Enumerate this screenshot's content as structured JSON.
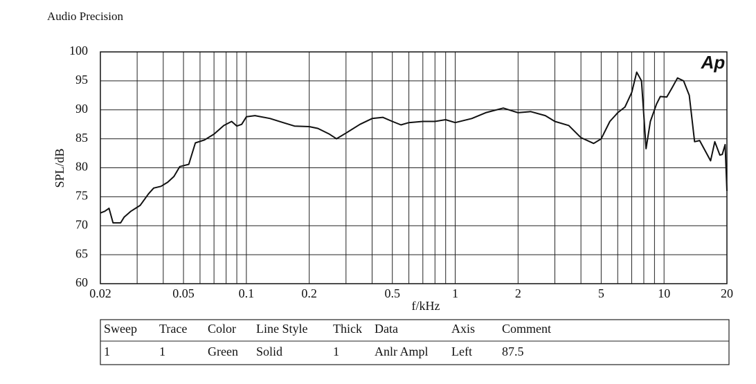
{
  "header": {
    "title": "Audio Precision",
    "logo": "Ap"
  },
  "chart_data": {
    "type": "line",
    "ylabel": "SPL/dB",
    "xlabel": "f/kHz",
    "xscale": "log",
    "grid": true,
    "color": "#111111",
    "xlim": [
      0.02,
      20
    ],
    "ylim": [
      60,
      100
    ],
    "xticks": [
      0.02,
      0.05,
      0.1,
      0.2,
      0.5,
      1,
      2,
      5,
      10,
      20
    ],
    "xgrid": [
      0.03,
      0.04,
      0.06,
      0.07,
      0.08,
      0.09,
      0.3,
      0.4,
      0.6,
      0.7,
      0.8,
      0.9,
      3,
      4,
      6,
      7,
      8,
      9
    ],
    "yticks": [
      60,
      65,
      70,
      75,
      80,
      85,
      90,
      95,
      100
    ],
    "x": [
      0.02,
      0.021,
      0.022,
      0.023,
      0.025,
      0.026,
      0.028,
      0.031,
      0.034,
      0.036,
      0.039,
      0.042,
      0.045,
      0.048,
      0.053,
      0.057,
      0.063,
      0.07,
      0.078,
      0.085,
      0.09,
      0.095,
      0.1,
      0.11,
      0.13,
      0.15,
      0.17,
      0.2,
      0.22,
      0.25,
      0.27,
      0.3,
      0.35,
      0.4,
      0.45,
      0.5,
      0.55,
      0.6,
      0.7,
      0.8,
      0.9,
      1.0,
      1.2,
      1.4,
      1.7,
      2.0,
      2.3,
      2.7,
      3.0,
      3.5,
      4.0,
      4.6,
      5.0,
      5.5,
      6.0,
      6.5,
      7.0,
      7.4,
      7.8,
      8.0,
      8.2,
      8.6,
      9.2,
      9.6,
      10.3,
      11,
      11.6,
      12.4,
      13.2,
      14,
      14.8,
      15.7,
      16.7,
      17.5,
      18.5,
      19.0,
      19.6,
      20
    ],
    "values": [
      72.2,
      72.5,
      73,
      70.5,
      70.5,
      71.5,
      72.5,
      73.5,
      75.5,
      76.5,
      76.8,
      77.5,
      78.5,
      80.2,
      80.6,
      84.3,
      84.8,
      85.8,
      87.3,
      88,
      87.2,
      87.5,
      88.8,
      89,
      88.5,
      87.8,
      87.2,
      87.1,
      86.8,
      85.8,
      85,
      86,
      87.5,
      88.5,
      88.7,
      88,
      87.4,
      87.8,
      88,
      88,
      88.3,
      87.8,
      88.5,
      89.5,
      90.3,
      89.5,
      89.7,
      89,
      88,
      87.3,
      85.2,
      84.2,
      85,
      88,
      89.5,
      90.5,
      93,
      96.5,
      95,
      89,
      83.3,
      88,
      91,
      92.3,
      92.2,
      94,
      95.5,
      95,
      92.5,
      84.5,
      84.7,
      83,
      81.2,
      84.5,
      82.2,
      82.3,
      84,
      76
    ]
  },
  "table": {
    "columns": [
      "Sweep",
      "Trace",
      "Color",
      "Line Style",
      "Thick",
      "Data",
      "Axis",
      "Comment"
    ],
    "rows": [
      [
        1,
        1,
        "Green",
        "Solid",
        1,
        "Anlr Ampl",
        "Left",
        87.5
      ]
    ]
  }
}
